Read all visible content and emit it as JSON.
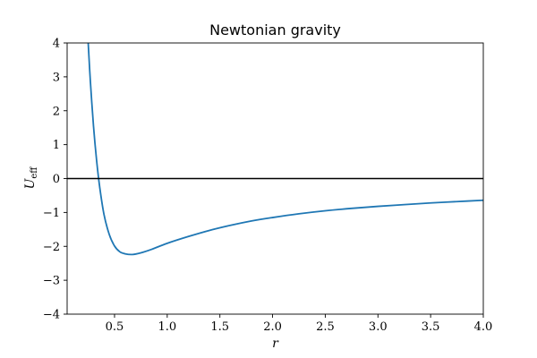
{
  "chart_data": {
    "type": "line",
    "title": "Newtonian gravity",
    "xlabel": "r",
    "ylabel": {
      "main": "U",
      "sub": "eff"
    },
    "xlim": [
      0.05,
      4.0
    ],
    "ylim": [
      -4,
      4
    ],
    "x_ticks": [
      {
        "value": 0.5,
        "label": "0.5"
      },
      {
        "value": 1.0,
        "label": "1.0"
      },
      {
        "value": 1.5,
        "label": "1.5"
      },
      {
        "value": 2.0,
        "label": "2.0"
      },
      {
        "value": 2.5,
        "label": "2.5"
      },
      {
        "value": 3.0,
        "label": "3.0"
      },
      {
        "value": 3.5,
        "label": "3.5"
      },
      {
        "value": 4.0,
        "label": "4.0"
      }
    ],
    "y_ticks": [
      {
        "value": -4,
        "label": "−4"
      },
      {
        "value": -3,
        "label": "−3"
      },
      {
        "value": -2,
        "label": "−2"
      },
      {
        "value": -1,
        "label": "−1"
      },
      {
        "value": 0,
        "label": "0"
      },
      {
        "value": 1,
        "label": "1"
      },
      {
        "value": 2,
        "label": "2"
      },
      {
        "value": 3,
        "label": "3"
      },
      {
        "value": 4,
        "label": "4"
      }
    ],
    "reference_line": {
      "y": 0,
      "color": "#000000"
    },
    "series": [
      {
        "color": "#1f77b4",
        "x": [
          0.25,
          0.27,
          0.3,
          0.33,
          0.36,
          0.4,
          0.45,
          0.5,
          0.55,
          0.6,
          0.67,
          0.75,
          0.85,
          1.0,
          1.2,
          1.4,
          1.6,
          1.8,
          2.0,
          2.25,
          2.5,
          2.75,
          3.0,
          3.25,
          3.5,
          3.75,
          4.0
        ],
        "y": [
          4.0,
          2.9,
          1.56,
          0.53,
          -0.27,
          -1.06,
          -1.65,
          -1.99,
          -2.16,
          -2.22,
          -2.24,
          -2.19,
          -2.09,
          -1.91,
          -1.71,
          -1.53,
          -1.38,
          -1.25,
          -1.15,
          -1.04,
          -0.95,
          -0.88,
          -0.82,
          -0.77,
          -0.72,
          -0.68,
          -0.64
        ]
      }
    ]
  },
  "colors": {
    "frame": "#000000",
    "background": "#ffffff"
  }
}
